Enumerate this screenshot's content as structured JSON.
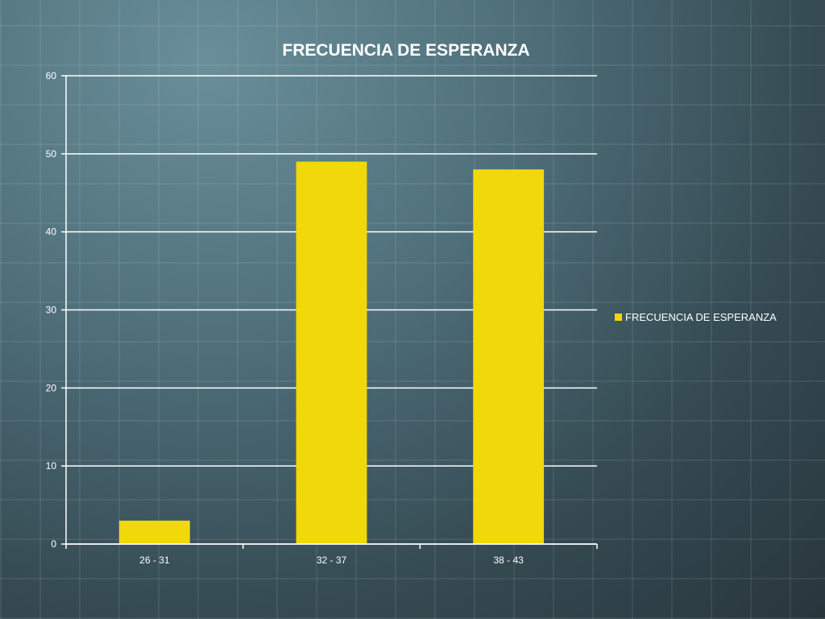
{
  "chart_data": {
    "type": "bar",
    "title": "FRECUENCIA DE ESPERANZA",
    "categories": [
      "26 - 31",
      "32 - 37",
      "38 - 43"
    ],
    "series": [
      {
        "name": "FRECUENCIA DE ESPERANZA",
        "values": [
          3,
          49,
          48
        ]
      }
    ],
    "ylim": [
      0,
      60
    ],
    "yticks": [
      "0",
      "10",
      "20",
      "30",
      "40",
      "50",
      "60"
    ],
    "xlabel": "",
    "ylabel": "",
    "grid": "horizontal",
    "legend_position": "right",
    "colors": {
      "bar": "#f0d80a",
      "axis": "#ffffff",
      "grid": "#ffffff",
      "text": "#ffffff"
    }
  }
}
